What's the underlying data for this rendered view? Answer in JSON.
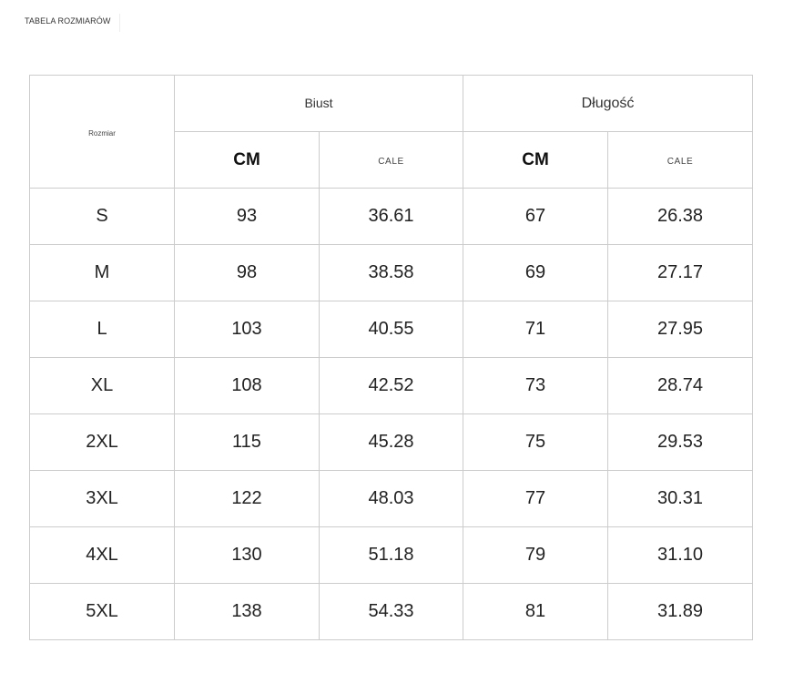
{
  "page": {
    "title": "TABELA ROZMIARÓW"
  },
  "table": {
    "size_header": "Rozmiar",
    "groups": {
      "bust": "Biust",
      "length": "Długość"
    },
    "units": {
      "cm": "CM",
      "inch": "CALE"
    },
    "rows": [
      {
        "size": "S",
        "bust_cm": "93",
        "bust_in": "36.61",
        "length_cm": "67",
        "length_in": "26.38"
      },
      {
        "size": "M",
        "bust_cm": "98",
        "bust_in": "38.58",
        "length_cm": "69",
        "length_in": "27.17"
      },
      {
        "size": "L",
        "bust_cm": "103",
        "bust_in": "40.55",
        "length_cm": "71",
        "length_in": "27.95"
      },
      {
        "size": "XL",
        "bust_cm": "108",
        "bust_in": "42.52",
        "length_cm": "73",
        "length_in": "28.74"
      },
      {
        "size": "2XL",
        "bust_cm": "115",
        "bust_in": "45.28",
        "length_cm": "75",
        "length_in": "29.53"
      },
      {
        "size": "3XL",
        "bust_cm": "122",
        "bust_in": "48.03",
        "length_cm": "77",
        "length_in": "30.31"
      },
      {
        "size": "4XL",
        "bust_cm": "130",
        "bust_in": "51.18",
        "length_cm": "79",
        "length_in": "31.10"
      },
      {
        "size": "5XL",
        "bust_cm": "138",
        "bust_in": "54.33",
        "length_cm": "81",
        "length_in": "31.89"
      }
    ]
  }
}
